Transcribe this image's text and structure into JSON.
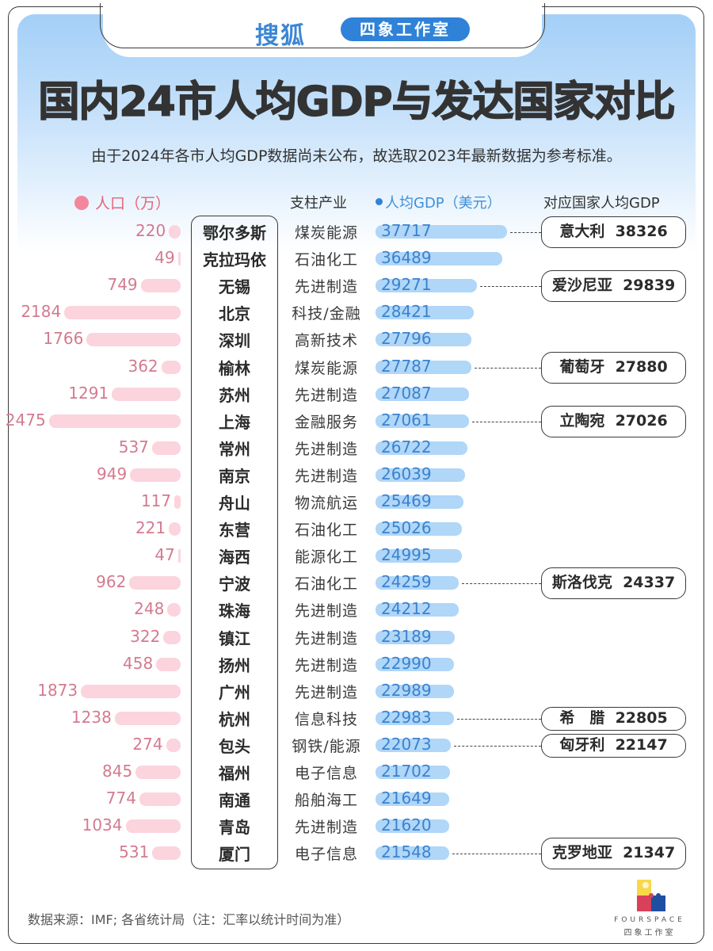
{
  "header": {
    "brand": "搜狐",
    "studio": "四象工作室",
    "title": "国内24市人均GDP与发达国家对比",
    "subtitle": "由于2024年各市人均GDP数据尚未公布，故选取2023年最新数据为参考标准。"
  },
  "columns": {
    "population": "人口（万）",
    "industry": "支柱产业",
    "gdp": "人均GDP（美元）",
    "country": "对应国家人均GDP"
  },
  "colors": {
    "population_bar": "#fbd4de",
    "population_text": "#d47a8f",
    "gdp_bar": "#b0d6f8",
    "gdp_text": "#3a83cf",
    "header_blue": "#a3cff7",
    "studio_pill": "#2f82d8"
  },
  "rows": [
    {
      "pop": "220",
      "city": "鄂尔多斯",
      "industry": "煤炭能源",
      "gdp": "37717",
      "country": "意大利",
      "country_gdp": "38326"
    },
    {
      "pop": "49",
      "city": "克拉玛依",
      "industry": "石油化工",
      "gdp": "36489"
    },
    {
      "pop": "749",
      "city": "无锡",
      "industry": "先进制造",
      "gdp": "29271",
      "country": "爱沙尼亚",
      "country_gdp": "29839"
    },
    {
      "pop": "2184",
      "city": "北京",
      "industry": "科技/金融",
      "gdp": "28421"
    },
    {
      "pop": "1766",
      "city": "深圳",
      "industry": "高新技术",
      "gdp": "27796"
    },
    {
      "pop": "362",
      "city": "榆林",
      "industry": "煤炭能源",
      "gdp": "27787",
      "country": "葡萄牙",
      "country_gdp": "27880"
    },
    {
      "pop": "1291",
      "city": "苏州",
      "industry": "先进制造",
      "gdp": "27087"
    },
    {
      "pop": "2475",
      "city": "上海",
      "industry": "金融服务",
      "gdp": "27061",
      "country": "立陶宛",
      "country_gdp": "27026"
    },
    {
      "pop": "537",
      "city": "常州",
      "industry": "先进制造",
      "gdp": "26722"
    },
    {
      "pop": "949",
      "city": "南京",
      "industry": "先进制造",
      "gdp": "26039"
    },
    {
      "pop": "117",
      "city": "舟山",
      "industry": "物流航运",
      "gdp": "25469"
    },
    {
      "pop": "221",
      "city": "东营",
      "industry": "石油化工",
      "gdp": "25026"
    },
    {
      "pop": "47",
      "city": "海西",
      "industry": "能源化工",
      "gdp": "24995"
    },
    {
      "pop": "962",
      "city": "宁波",
      "industry": "石油化工",
      "gdp": "24259",
      "country": "斯洛伐克",
      "country_gdp": "24337"
    },
    {
      "pop": "248",
      "city": "珠海",
      "industry": "先进制造",
      "gdp": "24212"
    },
    {
      "pop": "322",
      "city": "镇江",
      "industry": "先进制造",
      "gdp": "23189"
    },
    {
      "pop": "458",
      "city": "扬州",
      "industry": "先进制造",
      "gdp": "22990"
    },
    {
      "pop": "1873",
      "city": "广州",
      "industry": "先进制造",
      "gdp": "22989"
    },
    {
      "pop": "1238",
      "city": "杭州",
      "industry": "信息科技",
      "gdp": "22983",
      "country": "希　腊",
      "country_gdp": "22805"
    },
    {
      "pop": "274",
      "city": "包头",
      "industry": "钢铁/能源",
      "gdp": "22073",
      "country": "匈牙利",
      "country_gdp": "22147"
    },
    {
      "pop": "845",
      "city": "福州",
      "industry": "电子信息",
      "gdp": "21702"
    },
    {
      "pop": "774",
      "city": "南通",
      "industry": "船舶海工",
      "gdp": "21649"
    },
    {
      "pop": "1034",
      "city": "青岛",
      "industry": "先进制造",
      "gdp": "21620"
    },
    {
      "pop": "531",
      "city": "厦门",
      "industry": "电子信息",
      "gdp": "21548",
      "country": "克罗地亚",
      "country_gdp": "21347"
    }
  ],
  "footer": {
    "source": "数据来源：IMF; 各省统计局（注：汇率以统计时间为准）",
    "logo_en": "FOURSPACE",
    "logo_cn": "四象工作室"
  },
  "chart_data": {
    "type": "bar",
    "title": "国内24市人均GDP与发达国家对比",
    "subtitle": "由于2024年各市人均GDP数据尚未公布，故选取2023年最新数据为参考标准。",
    "categories": [
      "鄂尔多斯",
      "克拉玛依",
      "无锡",
      "北京",
      "深圳",
      "榆林",
      "苏州",
      "上海",
      "常州",
      "南京",
      "舟山",
      "东营",
      "海西",
      "宁波",
      "珠海",
      "镇江",
      "扬州",
      "广州",
      "杭州",
      "包头",
      "福州",
      "南通",
      "青岛",
      "厦门"
    ],
    "series": [
      {
        "name": "人口（万）",
        "values": [
          220,
          49,
          749,
          2184,
          1766,
          362,
          1291,
          2475,
          537,
          949,
          117,
          221,
          47,
          962,
          248,
          322,
          458,
          1873,
          1238,
          274,
          845,
          774,
          1034,
          531
        ]
      },
      {
        "name": "人均GDP（美元）",
        "values": [
          37717,
          36489,
          29271,
          28421,
          27796,
          27787,
          27087,
          27061,
          26722,
          26039,
          25469,
          25026,
          24995,
          24259,
          24212,
          23189,
          22990,
          22989,
          22983,
          22073,
          21702,
          21649,
          21620,
          21548
        ]
      }
    ],
    "industry": [
      "煤炭能源",
      "石油化工",
      "先进制造",
      "科技/金融",
      "高新技术",
      "煤炭能源",
      "先进制造",
      "金融服务",
      "先进制造",
      "先进制造",
      "物流航运",
      "石油化工",
      "能源化工",
      "石油化工",
      "先进制造",
      "先进制造",
      "先进制造",
      "先进制造",
      "信息科技",
      "钢铁/能源",
      "电子信息",
      "船舶海工",
      "先进制造",
      "电子信息"
    ],
    "annotations": [
      {
        "city": "鄂尔多斯",
        "country": "意大利",
        "gdp": 38326
      },
      {
        "city": "无锡",
        "country": "爱沙尼亚",
        "gdp": 29839
      },
      {
        "city": "榆林",
        "country": "葡萄牙",
        "gdp": 27880
      },
      {
        "city": "上海",
        "country": "立陶宛",
        "gdp": 27026
      },
      {
        "city": "宁波",
        "country": "斯洛伐克",
        "gdp": 24337
      },
      {
        "city": "杭州",
        "country": "希腊",
        "gdp": 22805
      },
      {
        "city": "包头",
        "country": "匈牙利",
        "gdp": 22147
      },
      {
        "city": "厦门",
        "country": "克罗地亚",
        "gdp": 21347
      }
    ],
    "xlabel": "",
    "ylabel": "",
    "orientation": "horizontal",
    "source": "数据来源：IMF; 各省统计局（注：汇率以统计时间为准）"
  }
}
